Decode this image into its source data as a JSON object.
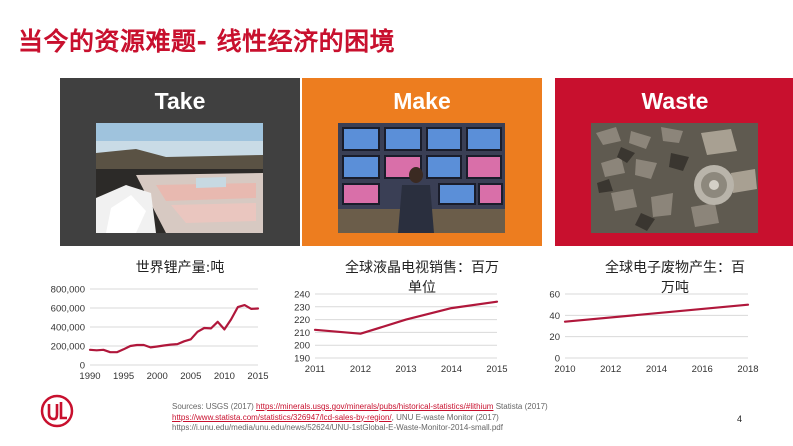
{
  "slide": {
    "title": "当今的资源难题- 线性经济的困境",
    "page_number": "4"
  },
  "panels": [
    {
      "label": "Take",
      "color": "#404040",
      "caption": "世界锂产量:吨"
    },
    {
      "label": "Make",
      "color": "#ed7d1f",
      "caption_line1": "全球液晶电视销售：百万",
      "caption_line2": "单位"
    },
    {
      "label": "Waste",
      "color": "#c8102e",
      "caption_line1": "全球电子废物产生：百",
      "caption_line2": "万吨"
    }
  ],
  "sources": {
    "prefix": "Sources: USGS (2017) ",
    "link1": "https://minerals.usgs.gov/minerals/pubs/historical-statistics/#lithium",
    "mid1": " Statista (2017)",
    "link2": "https://www.statista.com/statistics/326947/lcd-sales-by-region/",
    "mid2": ", UNU E-waste Monitor (2017)",
    "line3": "https://i.unu.edu/media/unu.edu/news/52624/UNU-1stGlobal-E-Waste-Monitor-2014-small.pdf"
  },
  "chart_data": [
    {
      "type": "line",
      "title": "世界锂产量:吨",
      "x": [
        1990,
        1991,
        1992,
        1993,
        1994,
        1995,
        1996,
        1997,
        1998,
        1999,
        2000,
        2001,
        2002,
        2003,
        2004,
        2005,
        2006,
        2007,
        2008,
        2009,
        2010,
        2011,
        2012,
        2013,
        2014,
        2015
      ],
      "y": [
        160000,
        155000,
        160000,
        135000,
        135000,
        165000,
        200000,
        210000,
        210000,
        185000,
        195000,
        205000,
        215000,
        220000,
        250000,
        270000,
        350000,
        390000,
        385000,
        455000,
        375000,
        480000,
        610000,
        630000,
        590000,
        595000
      ],
      "x_ticks": [
        "1990",
        "1995",
        "2000",
        "2005",
        "2010",
        "2015"
      ],
      "y_ticks": [
        "0",
        "200,000",
        "400,000",
        "600,000",
        "800,000"
      ],
      "ylim": [
        0,
        800000
      ],
      "xlim": [
        1990,
        2015
      ],
      "color": "#b0173b"
    },
    {
      "type": "line",
      "title": "全球液晶电视销售：百万单位",
      "x": [
        2011,
        2012,
        2013,
        2014,
        2015
      ],
      "y": [
        212,
        209,
        220,
        229,
        234
      ],
      "x_ticks": [
        "2011",
        "2012",
        "2013",
        "2014",
        "2015"
      ],
      "y_ticks": [
        "190",
        "200",
        "210",
        "220",
        "230",
        "240"
      ],
      "ylim": [
        190,
        240
      ],
      "xlim": [
        2011,
        2015
      ],
      "color": "#b0173b"
    },
    {
      "type": "line",
      "title": "全球电子废物产生：百万吨",
      "x": [
        2010,
        2018
      ],
      "y": [
        34,
        50
      ],
      "x_ticks": [
        "2010",
        "2012",
        "2014",
        "2016",
        "2018"
      ],
      "y_ticks": [
        "0",
        "20",
        "40",
        "60"
      ],
      "ylim": [
        0,
        60
      ],
      "xlim": [
        2010,
        2018
      ],
      "color": "#b0173b"
    }
  ],
  "logo": {
    "text": "UL",
    "color": "#c8102e"
  }
}
